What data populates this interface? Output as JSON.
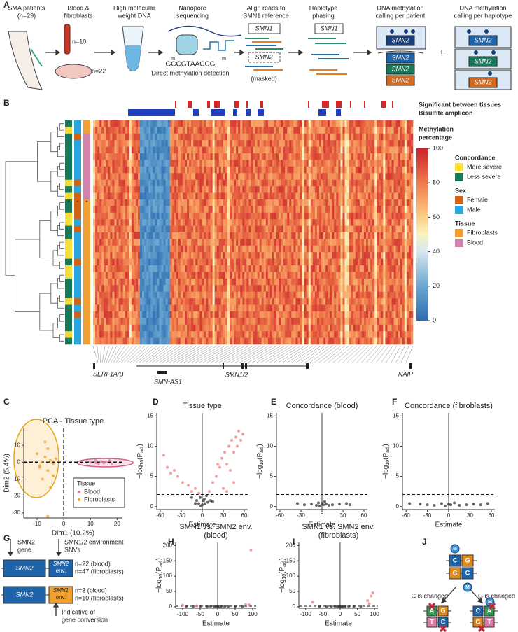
{
  "panel_labels": [
    "A",
    "B",
    "C",
    "D",
    "E",
    "F",
    "G",
    "H",
    "I",
    "J"
  ],
  "a": {
    "patients": [
      "SMA patients",
      "(n=29)"
    ],
    "samples": [
      "Blood &",
      "fibroblasts"
    ],
    "n_blood": "n=10",
    "n_fibro": "n=22",
    "dna": [
      "High molecular",
      "weight DNA"
    ],
    "nanopore": [
      "Nanopore",
      "sequencing"
    ],
    "sequence": "GCCGTAACCG",
    "mod": "m",
    "detection": "Direct methylation detection",
    "align": [
      "Align reads to",
      "SMN1 reference"
    ],
    "ref_gene": "SMN1",
    "masked_gene": "SMN2",
    "masked": "(masked)",
    "phasing": [
      "Haplotype",
      "phasing"
    ],
    "phased_gene": "SMN1",
    "per_patient": [
      "DNA methylation",
      "calling per patient"
    ],
    "per_haplotype": [
      "DNA methylation",
      "calling per haplotype"
    ],
    "gene": "SMN2",
    "plus": "+"
  },
  "b": {
    "tracks": [
      "Significant between tissues",
      "Bisulfite amplicon"
    ],
    "genes": [
      "SERF1A/B",
      "SMN-AS1",
      "SMN1/2",
      "NAIP"
    ],
    "colorbar": {
      "title": [
        "Methylation",
        "percentage"
      ],
      "lim": [
        0,
        100
      ],
      "ticks": [
        0,
        20,
        40,
        60,
        80,
        100
      ]
    },
    "legend": [
      {
        "title": "Concordance",
        "items": [
          {
            "label": "More severe",
            "color": "#f3de3a"
          },
          {
            "label": "Less severe",
            "color": "#17785a"
          }
        ]
      },
      {
        "title": "Sex",
        "items": [
          {
            "label": "Female",
            "color": "#cf6414"
          },
          {
            "label": "Male",
            "color": "#2aa6de"
          }
        ]
      },
      {
        "title": "Tissue",
        "items": [
          {
            "label": "Fibroblasts",
            "color": "#f0a030"
          },
          {
            "label": "Blood",
            "color": "#d283ac"
          }
        ]
      }
    ],
    "star": "*"
  },
  "g": {
    "gene": [
      "SMN2",
      "gene"
    ],
    "snv": [
      "SMN1/2 environment",
      "SNVs"
    ],
    "smn2": "SMN2",
    "rows": [
      {
        "env": [
          "SMN2",
          "env."
        ],
        "counts": [
          "n=22 (blood)",
          "n=47 (fibroblasts)"
        ]
      },
      {
        "env": [
          "SMN1",
          "env."
        ],
        "counts": [
          "n=3 (blood)",
          "n=10 (fibroblasts)"
        ]
      }
    ],
    "note": [
      "Indicative of",
      "gene conversion"
    ]
  },
  "j": {
    "mark": "M",
    "top": [
      [
        "C",
        "G"
      ],
      [
        "G",
        "C"
      ]
    ],
    "left": [
      [
        "A",
        "G"
      ],
      [
        "T",
        "C"
      ]
    ],
    "right": [
      [
        "C",
        "A"
      ],
      [
        "G",
        "T"
      ]
    ],
    "changes": [
      "C is changed",
      "G is changed"
    ]
  },
  "chart_data": [
    {
      "type": "scatter",
      "title": "PCA - Tissue type",
      "x_label": "Dim1 (10.2%)",
      "y_label": "Dim2 (5.4%)",
      "xlim": [
        -15,
        22
      ],
      "ylim": [
        -33,
        20
      ],
      "xticks": [
        -10,
        0,
        10,
        20
      ],
      "yticks": [
        -30,
        -20,
        -10,
        0,
        10
      ],
      "vline": 0,
      "hline": 0,
      "legend_title": "Tissue",
      "legend": "bottom-right",
      "series": [
        {
          "name": "Blood",
          "color": "#e07ba0",
          "x": [
            10,
            12,
            13,
            14,
            15,
            16,
            17,
            18,
            12,
            15
          ],
          "values": [
            0,
            1,
            -1,
            0.5,
            -0.5,
            0,
            1,
            -1,
            -0.3,
            0.2
          ]
        },
        {
          "name": "Fibroblasts",
          "color": "#f0a020",
          "x": [
            -10,
            -9,
            -8,
            -7,
            -6,
            -5,
            -4,
            -3,
            -8,
            -6,
            -5,
            -7,
            -9,
            -4,
            -6
          ],
          "values": [
            5,
            -2,
            0,
            3,
            -5,
            1,
            -1,
            2,
            -10,
            8,
            -15,
            12,
            -3,
            -8,
            -32
          ]
        }
      ]
    },
    {
      "type": "scatter",
      "title": "Tissue type",
      "x_label": "Estimate",
      "y_label": [
        "−log",
        "10",
        "(P",
        "adj",
        ")"
      ],
      "xlim": [
        -65,
        65
      ],
      "ylim": [
        -0.5,
        15.5
      ],
      "xticks": [
        -60,
        -30,
        0,
        30,
        60
      ],
      "yticks": [
        0,
        5,
        10,
        15
      ],
      "vline": 0,
      "threshold": 2,
      "series": [
        {
          "color": "#f07f7f",
          "x": [
            -55,
            -50,
            -45,
            -40,
            -35,
            -28,
            -20,
            -15,
            -10,
            10,
            15,
            20,
            22,
            25,
            28,
            30,
            32,
            35,
            38,
            40,
            42,
            45,
            48,
            50,
            52,
            55,
            58,
            45,
            35,
            -5
          ],
          "values": [
            8.5,
            6.5,
            5.5,
            6,
            5,
            4,
            3.5,
            2.5,
            3,
            2.5,
            4,
            5,
            7,
            6.5,
            8,
            3,
            9,
            7,
            10,
            6,
            11,
            9,
            11.5,
            10,
            12.5,
            11,
            12,
            4,
            2.5,
            2.2
          ]
        },
        {
          "color": "#333333",
          "x": [
            -8,
            -5,
            -3,
            0,
            2,
            4,
            6,
            8,
            -10,
            12,
            -2,
            3,
            -15,
            15
          ],
          "values": [
            1,
            0.5,
            1.5,
            0.3,
            1,
            0.5,
            1.8,
            0.7,
            0.5,
            1,
            0.1,
            1.2,
            1.5,
            0.8
          ]
        }
      ]
    },
    {
      "type": "scatter",
      "title": "Concordance (blood)",
      "x_label": "Estimate",
      "y_label": [
        "−log",
        "10",
        "(P",
        "adj",
        ")"
      ],
      "xlim": [
        -65,
        65
      ],
      "ylim": [
        -0.5,
        15.5
      ],
      "xticks": [
        -60,
        -30,
        0,
        30,
        60
      ],
      "yticks": [
        0,
        5,
        10,
        15
      ],
      "vline": 0,
      "threshold": 2,
      "series": [
        {
          "color": "#333333",
          "x": [
            -35,
            -25,
            -15,
            -8,
            -5,
            -3,
            0,
            2,
            4,
            6,
            10,
            15,
            25,
            35,
            40
          ],
          "values": [
            0.5,
            0.3,
            0.4,
            0.2,
            0.6,
            0.1,
            0.5,
            0.3,
            0.8,
            0.4,
            0.2,
            0.3,
            0.4,
            0.5,
            0.3
          ]
        }
      ]
    },
    {
      "type": "scatter",
      "title": "Concordance (fibroblasts)",
      "x_label": "Estimate",
      "y_label": [
        "−log",
        "10",
        "(P",
        "adj",
        ")"
      ],
      "xlim": [
        -65,
        65
      ],
      "ylim": [
        -0.5,
        15.5
      ],
      "xticks": [
        -60,
        -30,
        0,
        30,
        60
      ],
      "yticks": [
        0,
        5,
        10,
        15
      ],
      "vline": 0,
      "threshold": 2,
      "series": [
        {
          "color": "#333333",
          "x": [
            -55,
            -40,
            -30,
            -20,
            -10,
            -5,
            0,
            3,
            8,
            15,
            25,
            35,
            45,
            55
          ],
          "values": [
            0.5,
            0.4,
            0.3,
            0.2,
            0.5,
            0.1,
            0.4,
            0.3,
            0.6,
            0.2,
            0.3,
            0.4,
            0.3,
            0.5
          ]
        }
      ]
    },
    {
      "type": "scatter",
      "title": [
        "SMN1 vs. SMN2 env.",
        "(blood)"
      ],
      "x_label": "Estimate",
      "y_label": [
        "−log",
        "10",
        "(P",
        "adj",
        ")"
      ],
      "xlim": [
        -120,
        110
      ],
      "ylim": [
        -5,
        210
      ],
      "xticks": [
        -100,
        -50,
        0,
        50,
        100
      ],
      "yticks": [
        0,
        50,
        100,
        150,
        200
      ],
      "vline": 0,
      "threshold": 2,
      "series": [
        {
          "color": "#f07f7f",
          "x": [
            -100,
            95,
            80,
            90,
            -60
          ],
          "values": [
            5,
            185,
            8,
            6,
            3
          ]
        },
        {
          "color": "#333333",
          "x": [
            -90,
            -70,
            -50,
            -30,
            -20,
            -10,
            -5,
            0,
            5,
            10,
            20,
            30,
            50,
            70
          ],
          "values": [
            1,
            0.5,
            0.8,
            0.3,
            1.5,
            0.6,
            1,
            0.4,
            0.9,
            1.2,
            0.5,
            0.7,
            1,
            0.6
          ]
        }
      ]
    },
    {
      "type": "scatter",
      "title": [
        "SMN1 vs. SMN2 env.",
        "(fibroblasts)"
      ],
      "x_label": "Estimate",
      "y_label": [
        "−log",
        "10",
        "(P",
        "adj",
        ")"
      ],
      "xlim": [
        -120,
        110
      ],
      "ylim": [
        -5,
        210
      ],
      "xticks": [
        -100,
        -50,
        0,
        50,
        100
      ],
      "yticks": [
        0,
        50,
        100,
        150,
        200
      ],
      "vline": 0,
      "threshold": 2,
      "series": [
        {
          "color": "#f07f7f",
          "x": [
            -80,
            80,
            90,
            95,
            85
          ],
          "values": [
            15,
            20,
            35,
            45,
            10
          ]
        },
        {
          "color": "#333333",
          "x": [
            -60,
            -40,
            -25,
            -15,
            -8,
            -3,
            0,
            4,
            8,
            15,
            25,
            40,
            60
          ],
          "values": [
            1,
            0.5,
            0.8,
            1.2,
            0.4,
            0.9,
            0.6,
            1.1,
            0.3,
            0.7,
            1,
            0.5,
            0.8
          ]
        }
      ]
    }
  ]
}
